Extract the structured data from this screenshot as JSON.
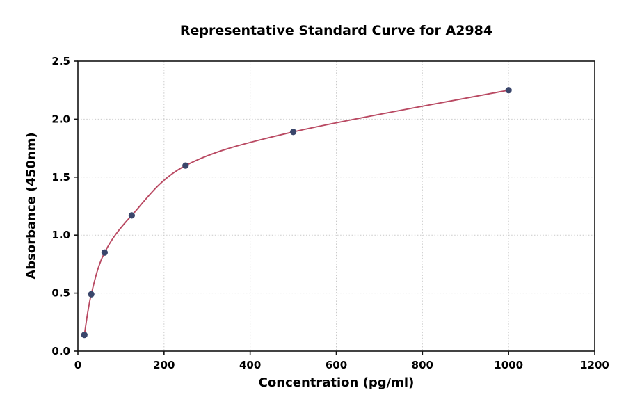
{
  "chart_data": {
    "type": "scatter",
    "title": "Representative Standard Curve for A2984",
    "xlabel": "Concentration (pg/ml)",
    "ylabel": "Absorbance (450nm)",
    "xlim": [
      0,
      1200
    ],
    "ylim": [
      0,
      2.5
    ],
    "x_ticks": [
      0,
      200,
      400,
      600,
      800,
      1000,
      1200
    ],
    "y_ticks": [
      0,
      0.5,
      1,
      1.5,
      2,
      2.5
    ],
    "grid": true,
    "legend_position": "none",
    "points": [
      {
        "x": 15,
        "y": 0.14
      },
      {
        "x": 31,
        "y": 0.49
      },
      {
        "x": 62,
        "y": 0.85
      },
      {
        "x": 125,
        "y": 1.17
      },
      {
        "x": 250,
        "y": 1.6
      },
      {
        "x": 500,
        "y": 1.89
      },
      {
        "x": 1000,
        "y": 2.25
      }
    ],
    "fit": "smooth saturating curve through all points",
    "colors": {
      "curve": "#b94962",
      "points": "#3a466b",
      "grid": "#c9c9c9",
      "axes": "#141414"
    }
  }
}
